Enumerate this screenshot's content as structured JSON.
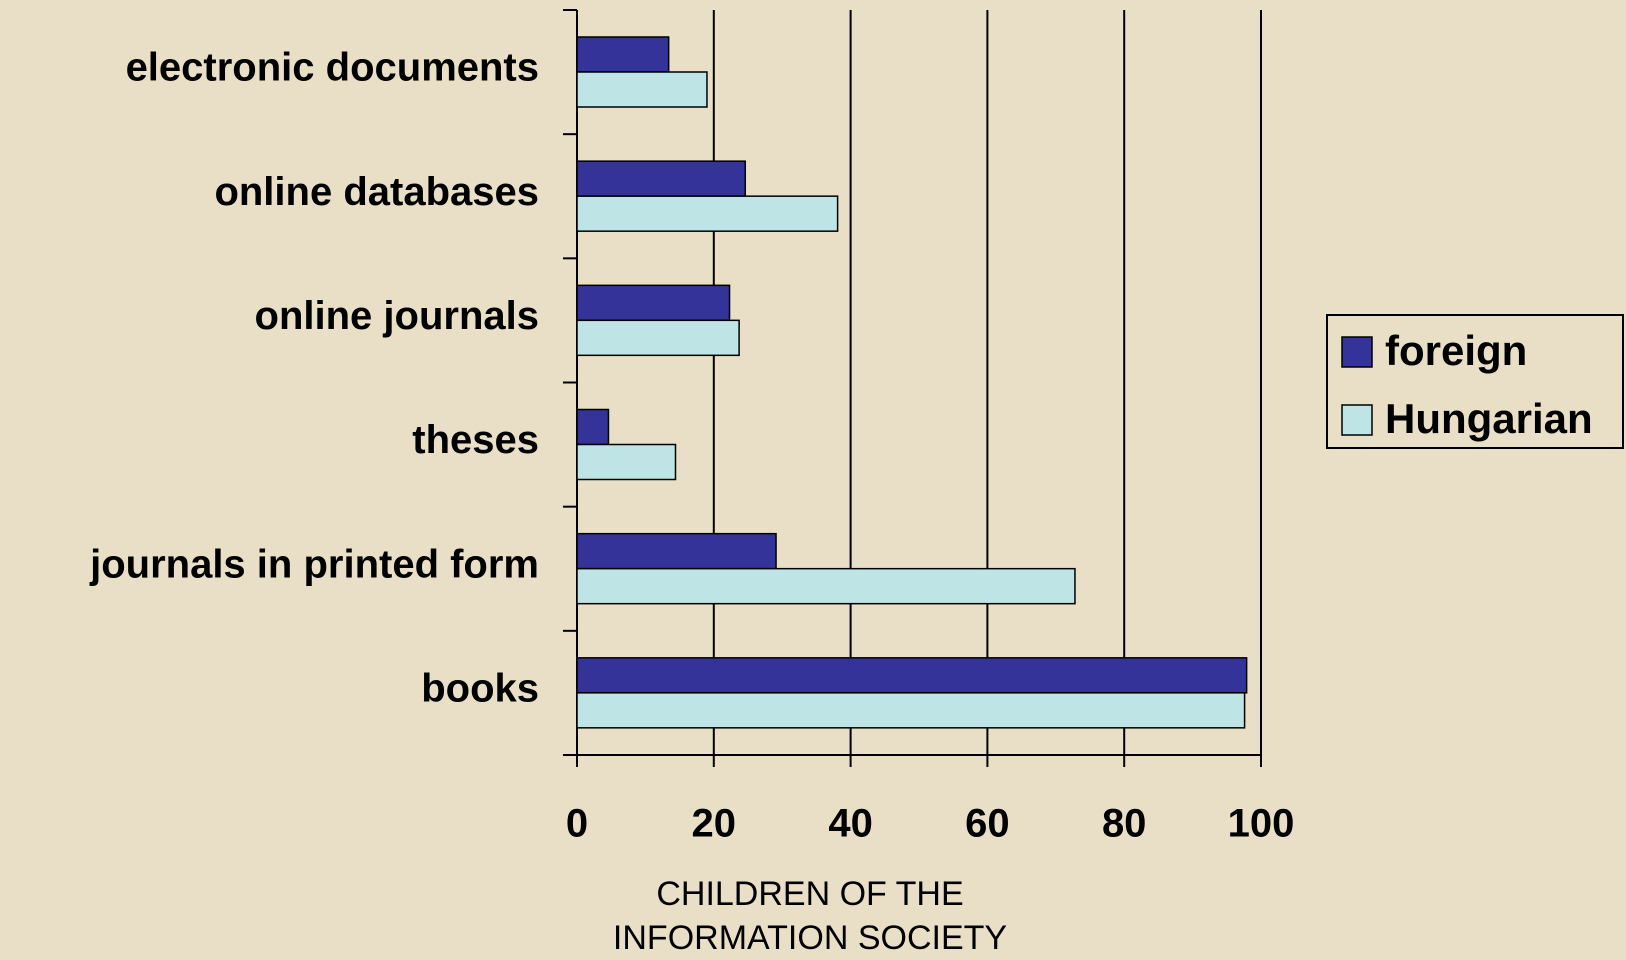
{
  "chart_data": {
    "type": "bar",
    "orientation": "horizontal",
    "categories": [
      "electronic documents",
      "online databases",
      "online journals",
      "theses",
      "journals in printed form",
      "books"
    ],
    "series": [
      {
        "name": "foreign",
        "color": "#333399",
        "values": [
          13.4,
          24.6,
          22.3,
          4.6,
          29.1,
          97.9
        ]
      },
      {
        "name": "Hungarian",
        "color": "#bfe4e6",
        "values": [
          19,
          38.1,
          23.7,
          14.4,
          72.8,
          97.6
        ]
      }
    ],
    "xlim": [
      0,
      100
    ],
    "xticks": [
      0,
      20,
      40,
      60,
      80,
      100
    ],
    "grid": true,
    "xlabel": "CHILDREN OF THE INFORMATION SOCIETY",
    "legend": "right"
  }
}
